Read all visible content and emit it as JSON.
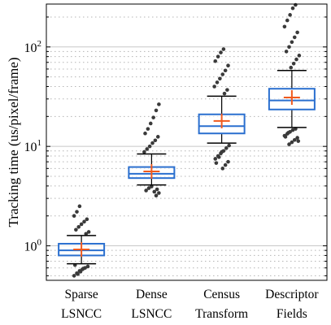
{
  "chart_data": {
    "type": "box",
    "title": "",
    "ylabel": "Tracking time (us/pixel/frame)",
    "xlabel": "",
    "yscale": "log",
    "ylim": [
      0.45,
      270
    ],
    "grid": true,
    "y_ticks": [
      {
        "value": 1,
        "base": "10",
        "exp": "0"
      },
      {
        "value": 10,
        "base": "10",
        "exp": "1"
      },
      {
        "value": 100,
        "base": "10",
        "exp": "2"
      }
    ],
    "categories": [
      {
        "line1": "Sparse",
        "line2": "LSNCC"
      },
      {
        "line1": "Dense",
        "line2": "LSNCC"
      },
      {
        "line1": "Census",
        "line2": "Transform"
      },
      {
        "line1": "Descriptor",
        "line2": "Fields"
      }
    ],
    "boxes": [
      {
        "q1": 0.8,
        "median": 0.9,
        "q3": 1.05,
        "mean": 0.92,
        "whisker_low": 0.66,
        "whisker_high": 1.27,
        "outliers_low": [
          0.5,
          0.53,
          0.56,
          0.58,
          0.6,
          0.62,
          0.64,
          0.52,
          0.55,
          0.59
        ],
        "outliers_high": [
          1.32,
          1.38,
          1.45,
          1.55,
          1.65,
          1.75,
          1.85,
          2.0,
          2.2,
          2.5
        ]
      },
      {
        "q1": 4.8,
        "median": 5.3,
        "q3": 6.2,
        "mean": 5.6,
        "whisker_low": 4.1,
        "whisker_high": 8.4,
        "outliers_low": [
          3.2,
          3.4,
          3.6,
          3.8,
          3.95,
          3.5,
          3.7
        ],
        "outliers_high": [
          8.8,
          9.4,
          10.0,
          10.8,
          11.5,
          12.5,
          13.5,
          15.0,
          17.0,
          19.5,
          23.0,
          26.5
        ]
      },
      {
        "q1": 13.5,
        "median": 16.0,
        "q3": 21.0,
        "mean": 18.0,
        "whisker_low": 10.8,
        "whisker_high": 32.0,
        "outliers_low": [
          6.0,
          6.5,
          7.0,
          7.5,
          8.0,
          8.5,
          9.0,
          9.6,
          10.2,
          6.8,
          7.8,
          8.8
        ],
        "outliers_high": [
          34,
          37,
          40,
          44,
          48,
          53,
          58,
          65,
          72,
          80,
          88,
          95
        ]
      },
      {
        "q1": 23.5,
        "median": 29.0,
        "q3": 38.0,
        "mean": 31.0,
        "whisker_low": 15.5,
        "whisker_high": 58.0,
        "outliers_low": [
          10.5,
          11.0,
          11.6,
          12.2,
          12.8,
          13.4,
          14.0,
          14.6,
          15.0,
          11.3,
          12.5,
          13.7
        ],
        "outliers_high": [
          62,
          68,
          75,
          82,
          90,
          100,
          112,
          125,
          140,
          160,
          185,
          210,
          245,
          265
        ]
      }
    ]
  },
  "colors": {
    "box": "#2a6fcf",
    "median": "#2a6fcf",
    "mean": "#f05a1e",
    "whisker": "#000000",
    "outlier": "#3a3a3a",
    "grid_major": "#c8c8c8",
    "grid_minor": "#b4b4b4"
  }
}
